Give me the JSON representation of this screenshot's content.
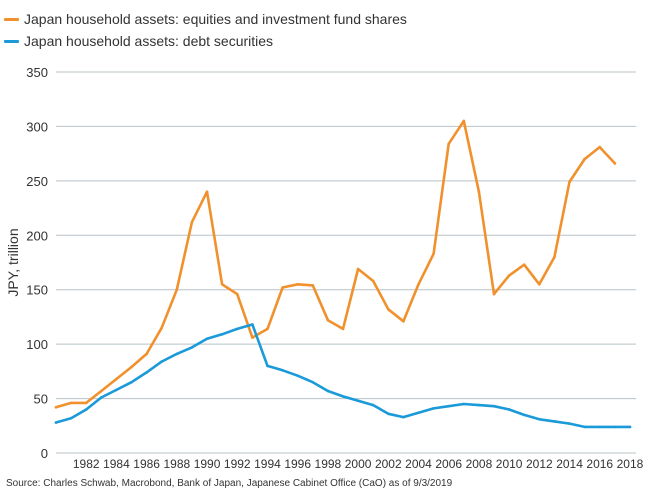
{
  "colors": {
    "equities": "#f0912d",
    "debt": "#1a9ad9",
    "grid": "#b8c3c9",
    "text": "#333333"
  },
  "legend": {
    "items": [
      {
        "label": "Japan household assets: equities and investment fund shares",
        "color": "#f0912d"
      },
      {
        "label": "Japan household assets: debt securities",
        "color": "#1a9ad9"
      }
    ]
  },
  "source": "Source: Charles Schwab, Macrobond, Bank of Japan, Japanese Cabinet Office (CaO) as of 9/3/2019",
  "chart_data": {
    "type": "line",
    "ylabel": "JPY, trillion",
    "ylim": [
      0,
      350
    ],
    "yticks": [
      0,
      50,
      100,
      150,
      200,
      250,
      300,
      350
    ],
    "xlim": [
      1980,
      2018.4
    ],
    "xticks": [
      1982,
      1984,
      1986,
      1988,
      1990,
      1992,
      1994,
      1996,
      1998,
      2000,
      2002,
      2004,
      2006,
      2008,
      2010,
      2012,
      2014,
      2016,
      2018
    ],
    "grid": true,
    "legend_position": "top-left",
    "series": [
      {
        "name": "Japan household assets: equities and investment fund shares",
        "color": "#f0912d",
        "x": [
          1980,
          1981,
          1982,
          1983,
          1984,
          1985,
          1986,
          1987,
          1988,
          1989,
          1990,
          1991,
          1992,
          1993,
          1994,
          1995,
          1996,
          1997,
          1998,
          1999,
          2000,
          2001,
          2002,
          2003,
          2004,
          2005,
          2006,
          2007,
          2008,
          2009,
          2010,
          2011,
          2012,
          2013,
          2014,
          2015,
          2016,
          2017
        ],
        "values": [
          42,
          46,
          46,
          57,
          68,
          79,
          91,
          115,
          150,
          212,
          240,
          155,
          146,
          106,
          114,
          152,
          155,
          154,
          122,
          114,
          169,
          158,
          132,
          121,
          155,
          183,
          284,
          305,
          240,
          146,
          163,
          173,
          155,
          180,
          249,
          270,
          281,
          266
        ]
      },
      {
        "name": "Japan household assets: debt securities",
        "color": "#1a9ad9",
        "x": [
          1980,
          1981,
          1982,
          1983,
          1984,
          1985,
          1986,
          1987,
          1988,
          1989,
          1990,
          1991,
          1992,
          1993,
          1994,
          1995,
          1996,
          1997,
          1998,
          1999,
          2000,
          2001,
          2002,
          2003,
          2004,
          2005,
          2006,
          2007,
          2008,
          2009,
          2010,
          2011,
          2012,
          2013,
          2014,
          2015,
          2016,
          2017,
          2018
        ],
        "values": [
          28,
          32,
          40,
          51,
          58,
          65,
          74,
          84,
          91,
          97,
          105,
          109,
          114,
          118,
          80,
          76,
          71,
          65,
          57,
          52,
          48,
          44,
          36,
          33,
          37,
          41,
          43,
          45,
          44,
          43,
          40,
          35,
          31,
          29,
          27,
          24,
          24,
          24,
          24
        ]
      }
    ]
  }
}
